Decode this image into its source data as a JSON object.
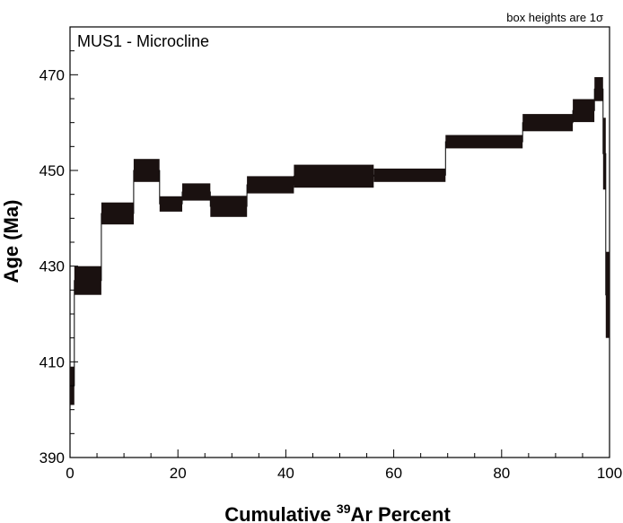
{
  "chart_data": {
    "type": "step-spectrum",
    "title": "MUS1 - Microcline",
    "note": "box heights are 1σ",
    "xlabel_prefix": "Cumulative ",
    "xlabel_sup": "39",
    "xlabel_suffix": "Ar Percent",
    "ylabel": "Age (Ma)",
    "xlim": [
      0,
      100
    ],
    "ylim": [
      390,
      480
    ],
    "xticks": [
      "0",
      "20",
      "40",
      "60",
      "80",
      "100"
    ],
    "yticks": [
      "390",
      "410",
      "430",
      "450",
      "470"
    ],
    "grid": false,
    "steps": [
      {
        "x0": 0.0,
        "x1": 0.8,
        "age": 405.0,
        "err": 4.0
      },
      {
        "x0": 0.8,
        "x1": 5.8,
        "age": 427.0,
        "err": 3.0
      },
      {
        "x0": 5.8,
        "x1": 11.8,
        "age": 441.0,
        "err": 2.3
      },
      {
        "x0": 11.8,
        "x1": 16.6,
        "age": 450.0,
        "err": 2.4
      },
      {
        "x0": 16.6,
        "x1": 20.8,
        "age": 443.0,
        "err": 1.6
      },
      {
        "x0": 20.8,
        "x1": 26.0,
        "age": 445.5,
        "err": 1.8
      },
      {
        "x0": 26.0,
        "x1": 32.8,
        "age": 442.5,
        "err": 2.2
      },
      {
        "x0": 32.8,
        "x1": 41.5,
        "age": 447.0,
        "err": 1.8
      },
      {
        "x0": 41.5,
        "x1": 56.3,
        "age": 448.8,
        "err": 2.4
      },
      {
        "x0": 56.3,
        "x1": 69.6,
        "age": 449.0,
        "err": 1.4
      },
      {
        "x0": 69.6,
        "x1": 83.9,
        "age": 456.0,
        "err": 1.4
      },
      {
        "x0": 83.9,
        "x1": 93.2,
        "age": 460.0,
        "err": 1.8
      },
      {
        "x0": 93.2,
        "x1": 97.2,
        "age": 462.5,
        "err": 2.4
      },
      {
        "x0": 97.2,
        "x1": 98.8,
        "age": 467.0,
        "err": 2.5
      },
      {
        "x0": 98.8,
        "x1": 99.3,
        "age": 453.5,
        "err": 7.5
      },
      {
        "x0": 99.3,
        "x1": 100.0,
        "age": 424.0,
        "err": 9.0
      }
    ]
  }
}
